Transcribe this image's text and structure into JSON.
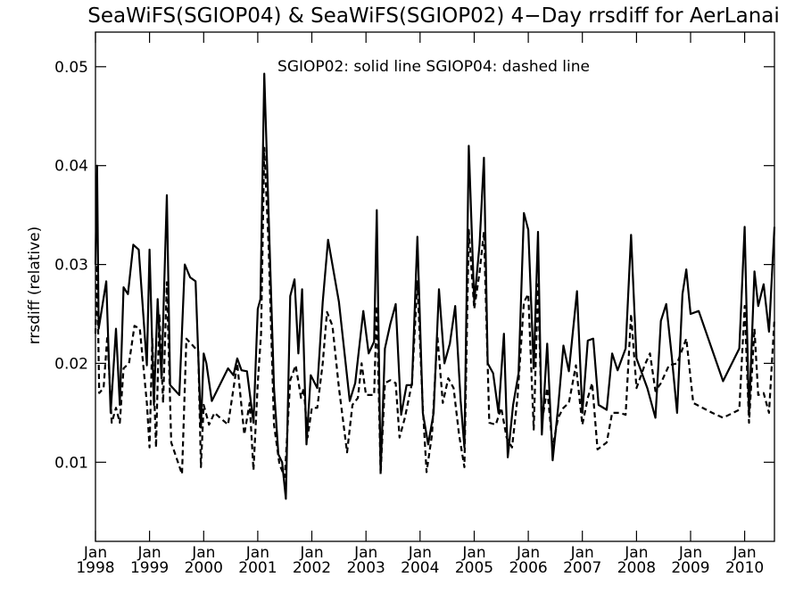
{
  "chart_data": {
    "type": "line",
    "title": "SeaWiFS(SGIOP04) & SeaWiFS(SGIOP02) 4−Day rrsdiff for AerLanai",
    "ylabel": "rrsdiff (relative)",
    "xlabel": "",
    "legend_text": "SGIOP02: solid line   SGIOP04: dashed line",
    "xlim": [
      1998.0,
      2010.55
    ],
    "ylim": [
      0.002,
      0.0535
    ],
    "yticks": [
      {
        "value": 0.01,
        "label": "0.01"
      },
      {
        "value": 0.02,
        "label": "0.02"
      },
      {
        "value": 0.03,
        "label": "0.03"
      },
      {
        "value": 0.04,
        "label": "0.04"
      },
      {
        "value": 0.05,
        "label": "0.05"
      }
    ],
    "xticks": [
      {
        "value": 1998,
        "month": "Jan",
        "year": "1998"
      },
      {
        "value": 1999,
        "month": "Jan",
        "year": "1999"
      },
      {
        "value": 2000,
        "month": "Jan",
        "year": "2000"
      },
      {
        "value": 2001,
        "month": "Jan",
        "year": "2001"
      },
      {
        "value": 2002,
        "month": "Jan",
        "year": "2002"
      },
      {
        "value": 2003,
        "month": "Jan",
        "year": "2003"
      },
      {
        "value": 2004,
        "month": "Jan",
        "year": "2004"
      },
      {
        "value": 2005,
        "month": "Jan",
        "year": "2005"
      },
      {
        "value": 2006,
        "month": "Jan",
        "year": "2006"
      },
      {
        "value": 2007,
        "month": "Jan",
        "year": "2007"
      },
      {
        "value": 2008,
        "month": "Jan",
        "year": "2008"
      },
      {
        "value": 2009,
        "month": "Jan",
        "year": "2009"
      },
      {
        "value": 2010,
        "month": "Jan",
        "year": "2010"
      }
    ],
    "series": [
      {
        "name": "SGIOP02",
        "style": "solid",
        "color": "#000000",
        "points": [
          [
            1998.0,
            0.03
          ],
          [
            1998.03,
            0.04
          ],
          [
            1998.06,
            0.0235
          ],
          [
            1998.2,
            0.0283
          ],
          [
            1998.28,
            0.015
          ],
          [
            1998.38,
            0.0235
          ],
          [
            1998.45,
            0.0158
          ],
          [
            1998.52,
            0.0277
          ],
          [
            1998.6,
            0.027
          ],
          [
            1998.7,
            0.032
          ],
          [
            1998.8,
            0.0315
          ],
          [
            1998.95,
            0.0198
          ],
          [
            1999.0,
            0.0315
          ],
          [
            1999.08,
            0.0158
          ],
          [
            1999.15,
            0.0265
          ],
          [
            1999.22,
            0.0185
          ],
          [
            1999.32,
            0.037
          ],
          [
            1999.38,
            0.0178
          ],
          [
            1999.55,
            0.0168
          ],
          [
            1999.65,
            0.03
          ],
          [
            1999.75,
            0.0287
          ],
          [
            1999.85,
            0.0283
          ],
          [
            1999.95,
            0.0135
          ],
          [
            2000.0,
            0.021
          ],
          [
            2000.05,
            0.02
          ],
          [
            2000.15,
            0.0162
          ],
          [
            2000.45,
            0.0195
          ],
          [
            2000.55,
            0.0188
          ],
          [
            2000.62,
            0.0205
          ],
          [
            2000.7,
            0.0193
          ],
          [
            2000.8,
            0.0192
          ],
          [
            2000.92,
            0.014
          ],
          [
            2001.0,
            0.0255
          ],
          [
            2001.05,
            0.0265
          ],
          [
            2001.12,
            0.0493
          ],
          [
            2001.3,
            0.0175
          ],
          [
            2001.38,
            0.0108
          ],
          [
            2001.45,
            0.01
          ],
          [
            2001.52,
            0.0063
          ],
          [
            2001.6,
            0.0268
          ],
          [
            2001.68,
            0.0285
          ],
          [
            2001.75,
            0.021
          ],
          [
            2001.82,
            0.0275
          ],
          [
            2001.9,
            0.0118
          ],
          [
            2001.98,
            0.0188
          ],
          [
            2002.1,
            0.0175
          ],
          [
            2002.2,
            0.0262
          ],
          [
            2002.3,
            0.0325
          ],
          [
            2002.5,
            0.0262
          ],
          [
            2002.7,
            0.0162
          ],
          [
            2002.8,
            0.018
          ],
          [
            2002.95,
            0.0253
          ],
          [
            2003.05,
            0.021
          ],
          [
            2003.15,
            0.0222
          ],
          [
            2003.2,
            0.0355
          ],
          [
            2003.27,
            0.009
          ],
          [
            2003.35,
            0.0215
          ],
          [
            2003.45,
            0.024
          ],
          [
            2003.55,
            0.026
          ],
          [
            2003.65,
            0.0148
          ],
          [
            2003.75,
            0.0178
          ],
          [
            2003.85,
            0.0178
          ],
          [
            2003.95,
            0.0328
          ],
          [
            2004.05,
            0.015
          ],
          [
            2004.15,
            0.0118
          ],
          [
            2004.25,
            0.015
          ],
          [
            2004.35,
            0.0275
          ],
          [
            2004.45,
            0.02
          ],
          [
            2004.55,
            0.022
          ],
          [
            2004.65,
            0.0258
          ],
          [
            2004.75,
            0.0162
          ],
          [
            2004.82,
            0.0115
          ],
          [
            2004.9,
            0.042
          ],
          [
            2005.0,
            0.0262
          ],
          [
            2005.1,
            0.032
          ],
          [
            2005.18,
            0.0408
          ],
          [
            2005.25,
            0.02
          ],
          [
            2005.35,
            0.019
          ],
          [
            2005.45,
            0.015
          ],
          [
            2005.55,
            0.023
          ],
          [
            2005.62,
            0.0105
          ],
          [
            2005.72,
            0.0158
          ],
          [
            2005.82,
            0.019
          ],
          [
            2005.92,
            0.0352
          ],
          [
            2006.0,
            0.0335
          ],
          [
            2006.1,
            0.0195
          ],
          [
            2006.18,
            0.0333
          ],
          [
            2006.25,
            0.0128
          ],
          [
            2006.35,
            0.022
          ],
          [
            2006.45,
            0.0102
          ],
          [
            2006.55,
            0.0155
          ],
          [
            2006.65,
            0.0218
          ],
          [
            2006.75,
            0.0192
          ],
          [
            2006.9,
            0.0273
          ],
          [
            2007.0,
            0.015
          ],
          [
            2007.1,
            0.0223
          ],
          [
            2007.2,
            0.0225
          ],
          [
            2007.3,
            0.0158
          ],
          [
            2007.45,
            0.0153
          ],
          [
            2007.55,
            0.021
          ],
          [
            2007.65,
            0.0193
          ],
          [
            2007.8,
            0.0215
          ],
          [
            2007.9,
            0.033
          ],
          [
            2008.0,
            0.0205
          ],
          [
            2008.2,
            0.0175
          ],
          [
            2008.35,
            0.0145
          ],
          [
            2008.45,
            0.0243
          ],
          [
            2008.55,
            0.026
          ],
          [
            2008.65,
            0.0208
          ],
          [
            2008.75,
            0.015
          ],
          [
            2008.85,
            0.027
          ],
          [
            2008.92,
            0.0295
          ],
          [
            2009.0,
            0.025
          ],
          [
            2009.15,
            0.0253
          ],
          [
            2009.6,
            0.0182
          ],
          [
            2009.9,
            0.0215
          ],
          [
            2010.0,
            0.0338
          ],
          [
            2010.08,
            0.0148
          ],
          [
            2010.18,
            0.0293
          ],
          [
            2010.25,
            0.0258
          ],
          [
            2010.35,
            0.028
          ],
          [
            2010.45,
            0.0232
          ],
          [
            2010.55,
            0.0338
          ]
        ]
      },
      {
        "name": "SGIOP04",
        "style": "dashed",
        "color": "#000000",
        "points": [
          [
            1998.0,
            0.023
          ],
          [
            1998.03,
            0.03
          ],
          [
            1998.07,
            0.017
          ],
          [
            1998.15,
            0.0175
          ],
          [
            1998.22,
            0.0228
          ],
          [
            1998.3,
            0.014
          ],
          [
            1998.38,
            0.0155
          ],
          [
            1998.45,
            0.014
          ],
          [
            1998.52,
            0.0195
          ],
          [
            1998.62,
            0.02
          ],
          [
            1998.72,
            0.0238
          ],
          [
            1998.82,
            0.0235
          ],
          [
            1998.95,
            0.016
          ],
          [
            1999.0,
            0.0115
          ],
          [
            1999.05,
            0.0225
          ],
          [
            1999.12,
            0.0115
          ],
          [
            1999.18,
            0.025
          ],
          [
            1999.25,
            0.016
          ],
          [
            1999.32,
            0.0282
          ],
          [
            1999.4,
            0.012
          ],
          [
            1999.6,
            0.0088
          ],
          [
            1999.68,
            0.0225
          ],
          [
            1999.9,
            0.0212
          ],
          [
            1999.95,
            0.0095
          ],
          [
            2000.0,
            0.0158
          ],
          [
            2000.1,
            0.0138
          ],
          [
            2000.2,
            0.015
          ],
          [
            2000.45,
            0.0138
          ],
          [
            2000.62,
            0.02
          ],
          [
            2000.75,
            0.0128
          ],
          [
            2000.85,
            0.016
          ],
          [
            2000.92,
            0.0092
          ],
          [
            2001.0,
            0.018
          ],
          [
            2001.06,
            0.023
          ],
          [
            2001.12,
            0.0418
          ],
          [
            2001.2,
            0.032
          ],
          [
            2001.3,
            0.0138
          ],
          [
            2001.4,
            0.0098
          ],
          [
            2001.5,
            0.0085
          ],
          [
            2001.6,
            0.0183
          ],
          [
            2001.7,
            0.0198
          ],
          [
            2001.8,
            0.0165
          ],
          [
            2001.85,
            0.0175
          ],
          [
            2001.92,
            0.0125
          ],
          [
            2002.0,
            0.0155
          ],
          [
            2002.1,
            0.0155
          ],
          [
            2002.2,
            0.02
          ],
          [
            2002.28,
            0.0252
          ],
          [
            2002.38,
            0.0238
          ],
          [
            2002.5,
            0.0175
          ],
          [
            2002.65,
            0.011
          ],
          [
            2002.75,
            0.0158
          ],
          [
            2002.85,
            0.0165
          ],
          [
            2002.92,
            0.02
          ],
          [
            2003.0,
            0.0168
          ],
          [
            2003.15,
            0.0168
          ],
          [
            2003.2,
            0.0258
          ],
          [
            2003.27,
            0.0088
          ],
          [
            2003.35,
            0.018
          ],
          [
            2003.45,
            0.0183
          ],
          [
            2003.55,
            0.018
          ],
          [
            2003.62,
            0.0125
          ],
          [
            2003.72,
            0.0145
          ],
          [
            2003.85,
            0.018
          ],
          [
            2003.95,
            0.0283
          ],
          [
            2004.05,
            0.0155
          ],
          [
            2004.12,
            0.009
          ],
          [
            2004.22,
            0.0128
          ],
          [
            2004.32,
            0.0228
          ],
          [
            2004.42,
            0.016
          ],
          [
            2004.52,
            0.0185
          ],
          [
            2004.62,
            0.0175
          ],
          [
            2004.72,
            0.0128
          ],
          [
            2004.82,
            0.0095
          ],
          [
            2004.9,
            0.0335
          ],
          [
            2005.0,
            0.0255
          ],
          [
            2005.1,
            0.0292
          ],
          [
            2005.18,
            0.0333
          ],
          [
            2005.28,
            0.014
          ],
          [
            2005.4,
            0.0138
          ],
          [
            2005.5,
            0.0155
          ],
          [
            2005.6,
            0.0125
          ],
          [
            2005.7,
            0.0115
          ],
          [
            2005.8,
            0.0165
          ],
          [
            2005.92,
            0.0262
          ],
          [
            2006.0,
            0.027
          ],
          [
            2006.1,
            0.0133
          ],
          [
            2006.18,
            0.028
          ],
          [
            2006.25,
            0.014
          ],
          [
            2006.35,
            0.0175
          ],
          [
            2006.45,
            0.0115
          ],
          [
            2006.55,
            0.0145
          ],
          [
            2006.65,
            0.0155
          ],
          [
            2006.75,
            0.016
          ],
          [
            2006.88,
            0.0198
          ],
          [
            2007.0,
            0.0138
          ],
          [
            2007.1,
            0.0165
          ],
          [
            2007.18,
            0.018
          ],
          [
            2007.28,
            0.0113
          ],
          [
            2007.45,
            0.012
          ],
          [
            2007.55,
            0.015
          ],
          [
            2007.7,
            0.015
          ],
          [
            2007.8,
            0.0148
          ],
          [
            2007.9,
            0.025
          ],
          [
            2008.0,
            0.0175
          ],
          [
            2008.15,
            0.0198
          ],
          [
            2008.25,
            0.021
          ],
          [
            2008.35,
            0.0172
          ],
          [
            2008.45,
            0.018
          ],
          [
            2008.6,
            0.0198
          ],
          [
            2008.75,
            0.02
          ],
          [
            2008.92,
            0.0225
          ],
          [
            2009.05,
            0.016
          ],
          [
            2009.4,
            0.015
          ],
          [
            2009.6,
            0.0145
          ],
          [
            2009.9,
            0.0153
          ],
          [
            2010.0,
            0.0258
          ],
          [
            2010.08,
            0.014
          ],
          [
            2010.18,
            0.0235
          ],
          [
            2010.25,
            0.0168
          ],
          [
            2010.35,
            0.017
          ],
          [
            2010.45,
            0.015
          ],
          [
            2010.55,
            0.0245
          ]
        ]
      }
    ]
  }
}
